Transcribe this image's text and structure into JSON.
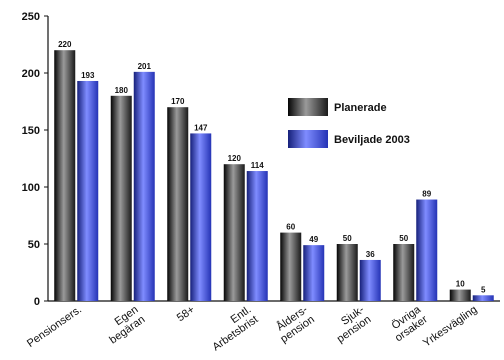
{
  "chart_data": {
    "type": "bar",
    "title": "",
    "xlabel": "",
    "ylabel": "",
    "ylim": [
      0,
      250
    ],
    "yticks": [
      0,
      50,
      100,
      150,
      200,
      250
    ],
    "grid": false,
    "legend_position": "right",
    "categories": [
      [
        "Pensionsers."
      ],
      [
        "Egen",
        "begäran"
      ],
      [
        "58+"
      ],
      [
        "Entl.",
        "Arbetsbrist"
      ],
      [
        "Ålders-",
        "pension"
      ],
      [
        "Sjuk-",
        "pension"
      ],
      [
        "Övriga",
        "orsaker"
      ],
      [
        "Yrkesvägling"
      ]
    ],
    "series": [
      {
        "name": "Planerade",
        "values": [
          220,
          180,
          170,
          120,
          60,
          50,
          50,
          10
        ],
        "color": "#3a3a3a"
      },
      {
        "name": "Beviljade 2003",
        "values": [
          193,
          201,
          147,
          114,
          49,
          36,
          89,
          5
        ],
        "color": "#3a49c8"
      }
    ]
  }
}
